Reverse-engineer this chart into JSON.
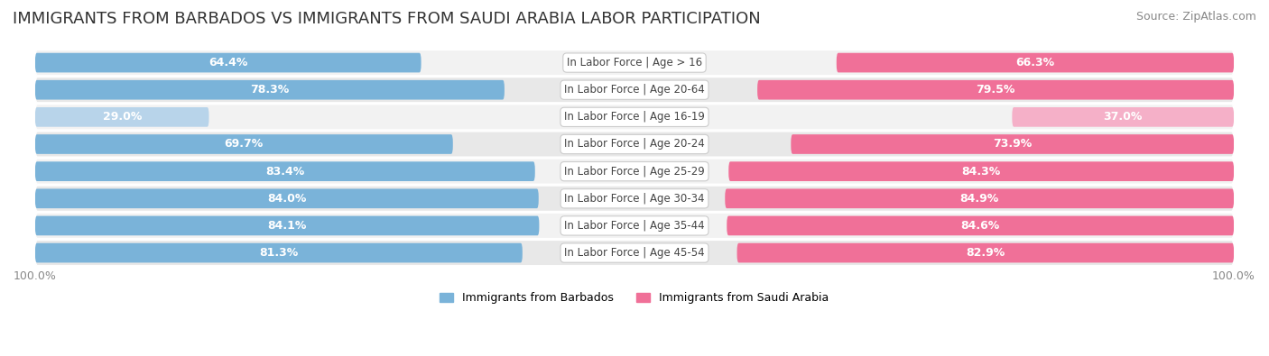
{
  "title": "IMMIGRANTS FROM BARBADOS VS IMMIGRANTS FROM SAUDI ARABIA LABOR PARTICIPATION",
  "source": "Source: ZipAtlas.com",
  "categories": [
    "In Labor Force | Age > 16",
    "In Labor Force | Age 20-64",
    "In Labor Force | Age 16-19",
    "In Labor Force | Age 20-24",
    "In Labor Force | Age 25-29",
    "In Labor Force | Age 30-34",
    "In Labor Force | Age 35-44",
    "In Labor Force | Age 45-54"
  ],
  "barbados_values": [
    64.4,
    78.3,
    29.0,
    69.7,
    83.4,
    84.0,
    84.1,
    81.3
  ],
  "saudi_values": [
    66.3,
    79.5,
    37.0,
    73.9,
    84.3,
    84.9,
    84.6,
    82.9
  ],
  "barbados_color": "#7ab3d9",
  "barbados_color_light": "#b8d4ea",
  "saudi_color": "#f07098",
  "saudi_color_light": "#f5b0c8",
  "row_bg_color_odd": "#f2f2f2",
  "row_bg_color_even": "#e8e8e8",
  "label_color_dark": "#555555",
  "label_color_white": "#ffffff",
  "max_value": 100.0,
  "title_fontsize": 13,
  "label_fontsize": 9,
  "tick_fontsize": 9,
  "legend_fontsize": 9,
  "legend_labels": [
    "Immigrants from Barbados",
    "Immigrants from Saudi Arabia"
  ]
}
